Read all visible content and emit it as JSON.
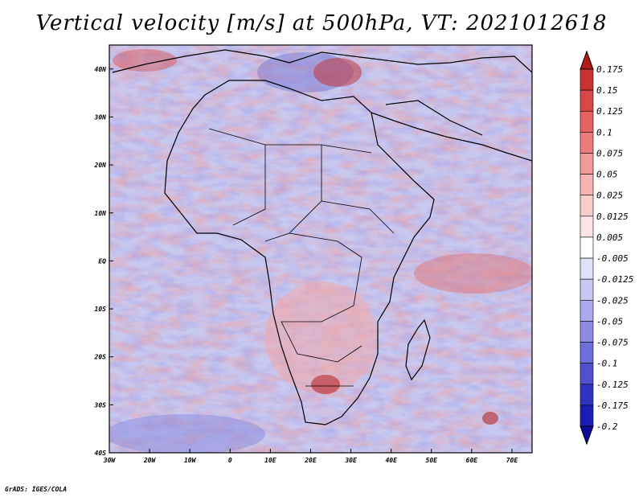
{
  "title": "Vertical velocity [m/s] at 500hPa, VT: 2021012618",
  "footer": "GrADS: IGES/COLA",
  "map": {
    "lon_range": [
      -30,
      75
    ],
    "lat_range": [
      -40,
      45
    ],
    "lat_labels": [
      "40N",
      "30N",
      "20N",
      "10N",
      "EQ",
      "10S",
      "20S",
      "30S",
      "40S"
    ],
    "lon_labels": [
      "30W",
      "20W",
      "10W",
      "0",
      "10E",
      "20E",
      "30E",
      "40E",
      "50E",
      "60E",
      "70E"
    ]
  },
  "colorbar": {
    "labels": [
      "0.175",
      "0.15",
      "0.125",
      "0.1",
      "0.075",
      "0.05",
      "0.025",
      "0.0125",
      "0.005",
      "-0.005",
      "-0.0125",
      "-0.025",
      "-0.05",
      "-0.075",
      "-0.1",
      "-0.125",
      "-0.175",
      "-0.2"
    ],
    "colors": [
      "#b01c1c",
      "#c83232",
      "#d84848",
      "#e46262",
      "#ec7c7c",
      "#f29898",
      "#f6b4b4",
      "#f9cccc",
      "#fce4e4",
      "#ffffff",
      "#e0e0f8",
      "#c8c8f2",
      "#aaaaec",
      "#8c8ce4",
      "#6e6edc",
      "#5050d0",
      "#3232c0",
      "#1c1cb0",
      "#0c0c9c"
    ]
  }
}
